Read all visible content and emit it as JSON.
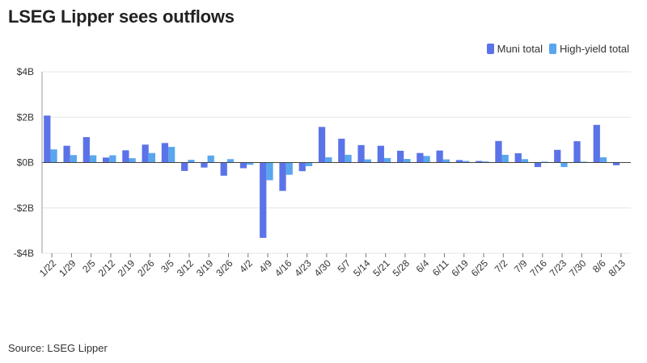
{
  "title": "LSEG Lipper sees outflows",
  "source": "Source: LSEG Lipper",
  "colors": {
    "muni": "#5b73e8",
    "high_yield": "#5aa6ee",
    "grid": "#e6e6e6",
    "axis": "#333333"
  },
  "chart_data": {
    "type": "bar",
    "title": "LSEG Lipper sees outflows",
    "xlabel": "",
    "ylabel": "",
    "ylim": [
      -4,
      4
    ],
    "yticks": [
      4,
      2,
      0,
      -2,
      -4
    ],
    "ytick_labels": [
      "$4B",
      "$2B",
      "$0B",
      "-$2B",
      "-$4B"
    ],
    "legend_position": "top-right",
    "categories": [
      "1/22",
      "1/29",
      "2/5",
      "2/12",
      "2/19",
      "2/26",
      "3/5",
      "3/12",
      "3/19",
      "3/26",
      "4/2",
      "4/9",
      "4/16",
      "4/23",
      "4/30",
      "5/7",
      "5/14",
      "5/21",
      "5/28",
      "6/4",
      "6/11",
      "6/19",
      "6/25",
      "7/2",
      "7/9",
      "7/16",
      "7/23",
      "7/30",
      "8/6",
      "8/13"
    ],
    "series": [
      {
        "name": "Muni total",
        "values": [
          2.07,
          0.74,
          1.12,
          0.22,
          0.54,
          0.79,
          0.86,
          -0.37,
          -0.22,
          -0.58,
          -0.25,
          -3.32,
          -1.25,
          -0.38,
          1.57,
          1.05,
          0.77,
          0.74,
          0.52,
          0.42,
          0.53,
          0.11,
          0.07,
          0.95,
          0.41,
          -0.2,
          0.56,
          0.94,
          1.66,
          -0.12
        ]
      },
      {
        "name": "High-yield total",
        "values": [
          0.58,
          0.33,
          0.32,
          0.32,
          0.19,
          0.42,
          0.69,
          0.12,
          0.31,
          0.15,
          -0.1,
          -0.78,
          -0.54,
          -0.16,
          0.23,
          0.34,
          0.14,
          0.2,
          0.16,
          0.29,
          0.14,
          0.07,
          0.05,
          0.34,
          0.15,
          0.04,
          -0.2,
          0.04,
          0.23,
          0.02
        ]
      }
    ]
  }
}
